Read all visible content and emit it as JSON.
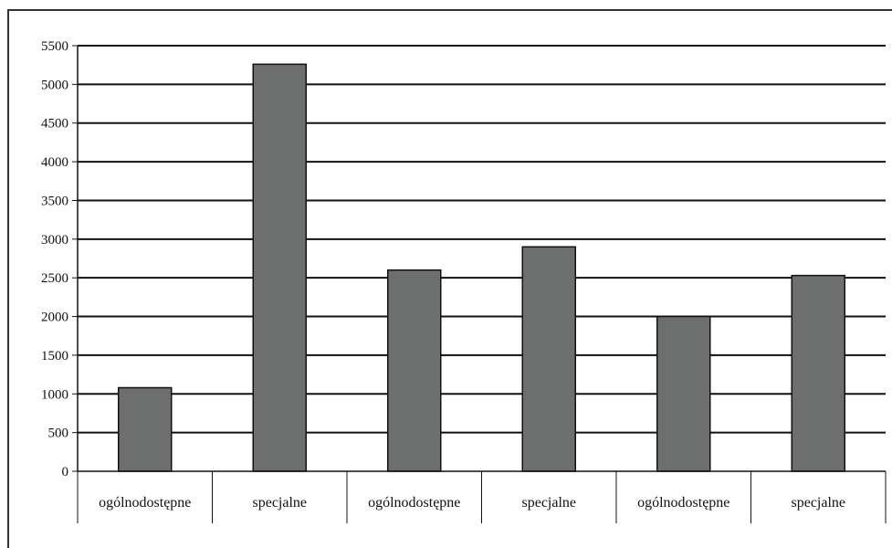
{
  "chart_data": {
    "type": "bar",
    "categories": [
      "ogólnodostępne",
      "specjalne",
      "ogólnodostępne",
      "specjalne",
      "ogólnodostępne",
      "specjalne"
    ],
    "values": [
      1080,
      5260,
      2600,
      2900,
      2000,
      2530
    ],
    "ylim": [
      0,
      5500
    ],
    "ytick_step": 500,
    "yticks": [
      "0",
      "500",
      "1000",
      "1500",
      "2000",
      "2500",
      "3000",
      "3500",
      "4000",
      "4500",
      "5000",
      "5500"
    ],
    "title": "",
    "xlabel": "",
    "ylabel": "",
    "grid": true,
    "legend": "none",
    "colors": {
      "bar": "#6d6f6e",
      "grid": "#111111",
      "frame": "#333333"
    }
  }
}
